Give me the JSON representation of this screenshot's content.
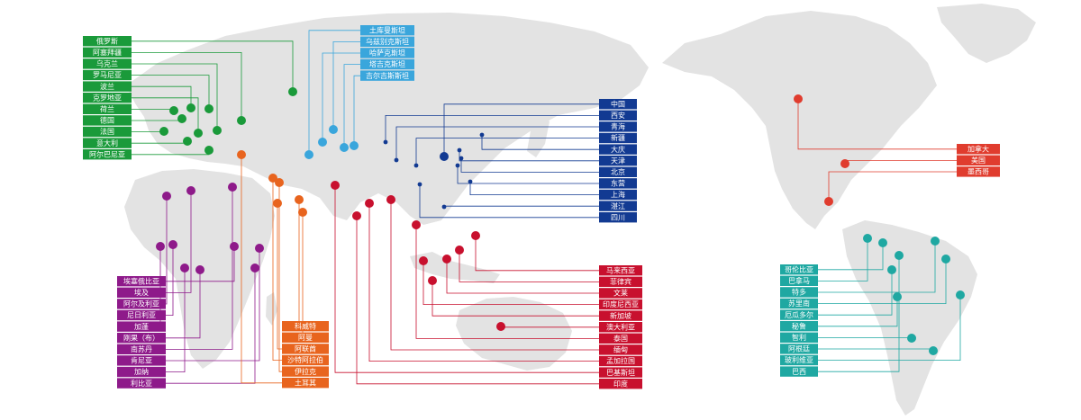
{
  "colors": {
    "land": "#e3e3e3",
    "green": "#1a9a3a",
    "lightblue": "#3aa6dc",
    "navy": "#123a92",
    "red": "#c8102e",
    "purple": "#8e1a8a",
    "orange": "#e8641e",
    "teal": "#1fa8a2",
    "canada_red": "#e03c2e"
  },
  "groups": {
    "europe": {
      "color_key": "green",
      "labels": [
        "俄罗斯",
        "阿塞拜疆",
        "乌克兰",
        "罗马尼亚",
        "波兰",
        "克罗地亚",
        "荷兰",
        "德国",
        "法国",
        "意大利",
        "阿尔巴尼亚"
      ]
    },
    "central_asia": {
      "color_key": "lightblue",
      "labels": [
        "土库曼斯坦",
        "乌兹别克斯坦",
        "哈萨克斯坦",
        "塔吉克斯坦",
        "吉尔吉斯斯坦"
      ]
    },
    "china": {
      "color_key": "navy",
      "labels": [
        "中国",
        "西安",
        "青海",
        "新疆",
        "大庆",
        "天津",
        "北京",
        "东营",
        "上海",
        "湛江",
        "四川"
      ]
    },
    "asia_pacific": {
      "color_key": "red",
      "labels": [
        "马来西亚",
        "菲律宾",
        "文莱",
        "印度尼西亚",
        "新加坡",
        "澳大利亚",
        "泰国",
        "缅甸",
        "孟加拉国",
        "巴基斯坦",
        "印度"
      ]
    },
    "africa": {
      "color_key": "purple",
      "labels": [
        "埃塞俄比亚",
        "埃及",
        "阿尔及利亚",
        "尼日利亚",
        "加蓬",
        "刚果（布）",
        "南苏丹",
        "肯尼亚",
        "加纳",
        "利比亚"
      ]
    },
    "middle_east": {
      "color_key": "orange",
      "labels": [
        "科威特",
        "阿曼",
        "阿联酋",
        "沙特阿拉伯",
        "伊拉克",
        "土耳其"
      ]
    },
    "north_america": {
      "color_key": "canada_red",
      "labels": [
        "加拿大",
        "美国",
        "墨西哥"
      ]
    },
    "latin_america": {
      "color_key": "teal",
      "labels": [
        "哥伦比亚",
        "巴拿马",
        "特多",
        "苏里南",
        "厄瓜多尔",
        "秘鲁",
        "智利",
        "阿根廷",
        "玻利维亚",
        "巴西"
      ]
    }
  }
}
